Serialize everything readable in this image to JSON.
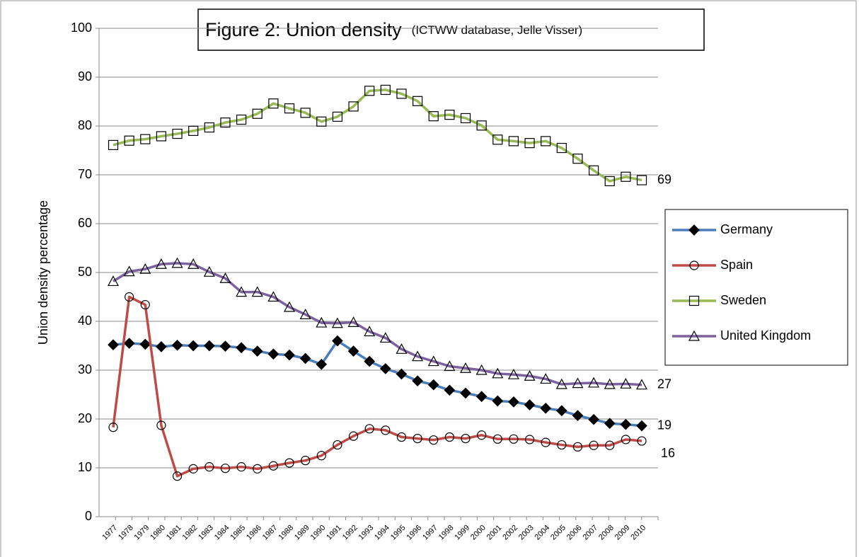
{
  "chart_data": {
    "type": "line",
    "title": "Figure 2: Union density",
    "subtitle": "(ICTWW database, Jelle Visser)",
    "y_label": "Union density percentage",
    "categories": [
      "1977",
      "1978",
      "1979",
      "1980",
      "1981",
      "1982",
      "1983",
      "1984",
      "1985",
      "1986",
      "1987",
      "1988",
      "1989",
      "1990",
      "1991",
      "1992",
      "1993",
      "1994",
      "1995",
      "1996",
      "1997",
      "1998",
      "1999",
      "2000",
      "2001",
      "2002",
      "2003",
      "2004",
      "2005",
      "2006",
      "2007",
      "2008",
      "2009",
      "2010"
    ],
    "ylim": [
      0,
      100
    ],
    "yticks": [
      0,
      10,
      20,
      30,
      40,
      50,
      60,
      70,
      80,
      90,
      100
    ],
    "grid": true,
    "legend": "right",
    "series": [
      {
        "name": "Germany",
        "color": "#4a7ebb",
        "marker": "diamond",
        "end_label": "19",
        "values": [
          35.2,
          35.5,
          35.3,
          34.8,
          35.1,
          35.0,
          35.0,
          34.9,
          34.6,
          33.9,
          33.3,
          33.1,
          32.4,
          31.2,
          36.0,
          33.9,
          31.8,
          30.3,
          29.2,
          27.8,
          27.0,
          25.9,
          25.3,
          24.6,
          23.7,
          23.5,
          22.9,
          22.2,
          21.7,
          20.7,
          19.9,
          19.1,
          18.9,
          18.6
        ]
      },
      {
        "name": "Spain",
        "color": "#be4b48",
        "marker": "circle",
        "end_label": "16",
        "values": [
          18.3,
          45.0,
          43.4,
          18.7,
          8.3,
          9.8,
          10.2,
          9.9,
          10.2,
          9.8,
          10.4,
          11.0,
          11.5,
          12.5,
          14.7,
          16.5,
          18.0,
          17.7,
          16.3,
          16.0,
          15.7,
          16.3,
          16.0,
          16.7,
          15.9,
          15.9,
          15.8,
          15.2,
          14.7,
          14.3,
          14.6,
          14.6,
          15.8,
          15.5
        ]
      },
      {
        "name": "Sweden",
        "color": "#98b954",
        "marker": "square",
        "end_label": "69",
        "values": [
          76.1,
          77.0,
          77.3,
          77.9,
          78.4,
          79.0,
          79.7,
          80.7,
          81.3,
          82.5,
          84.6,
          83.6,
          82.7,
          80.9,
          81.9,
          84.0,
          87.2,
          87.4,
          86.6,
          85.1,
          82.0,
          82.3,
          81.6,
          80.1,
          77.2,
          76.9,
          76.5,
          76.9,
          75.5,
          73.3,
          70.9,
          68.7,
          69.6,
          68.9
        ]
      },
      {
        "name": "United Kingdom",
        "color": "#7d60a0",
        "marker": "triangle",
        "end_label": "27",
        "values": [
          48.2,
          50.2,
          50.7,
          51.7,
          51.9,
          51.7,
          50.1,
          48.8,
          46.0,
          46.0,
          45.0,
          42.9,
          41.4,
          39.7,
          39.6,
          39.8,
          37.9,
          36.6,
          34.3,
          32.8,
          31.8,
          30.8,
          30.4,
          30.0,
          29.3,
          29.1,
          28.8,
          28.2,
          27.1,
          27.3,
          27.4,
          27.1,
          27.2,
          27.0
        ]
      }
    ]
  }
}
